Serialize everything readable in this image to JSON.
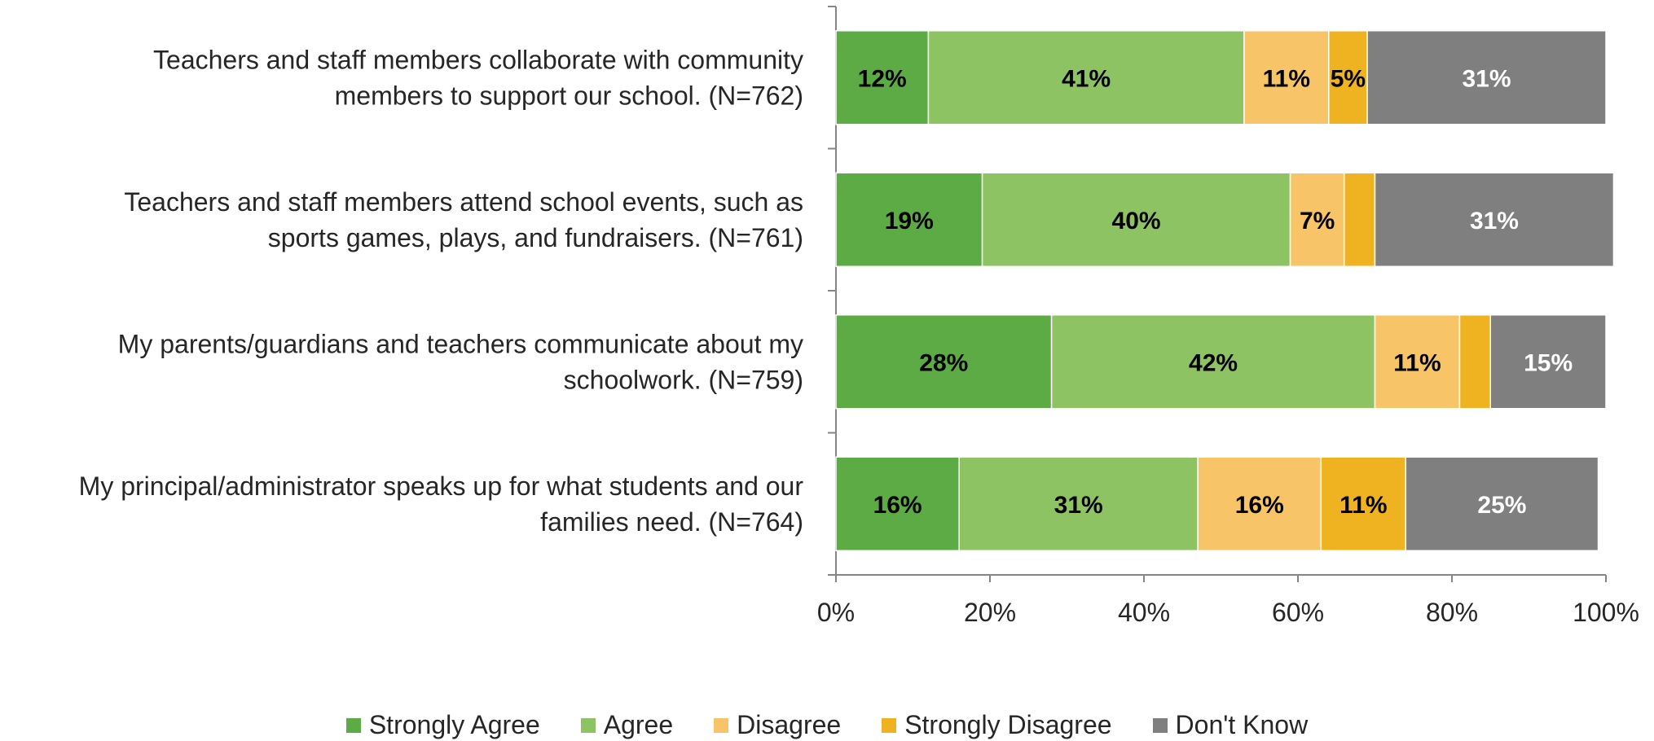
{
  "chart_data": {
    "type": "bar",
    "orientation": "horizontal",
    "stacked": true,
    "categories": [
      [
        "Teachers and staff members collaborate with community",
        "members to support our school. (N=762)"
      ],
      [
        "Teachers and staff members attend school events, such as",
        "sports games, plays, and fundraisers. (N=761)"
      ],
      [
        "My parents/guardians and teachers communicate about my",
        "schoolwork. (N=759)"
      ],
      [
        "My principal/administrator speaks up for what students and our",
        "families need. (N=764)"
      ]
    ],
    "series": [
      {
        "name": "Strongly Agree",
        "color": "#5DAB45",
        "values": [
          12,
          19,
          28,
          16
        ],
        "labels": [
          "12%",
          "19%",
          "28%",
          "16%"
        ],
        "label_color": "#000000"
      },
      {
        "name": "Agree",
        "color": "#8DC363",
        "values": [
          41,
          40,
          42,
          31
        ],
        "labels": [
          "41%",
          "40%",
          "42%",
          "31%"
        ],
        "label_color": "#000000"
      },
      {
        "name": "Disagree",
        "color": "#F7C568",
        "values": [
          11,
          7,
          11,
          16
        ],
        "labels": [
          "11%",
          "7%",
          "11%",
          "16%"
        ],
        "label_color": "#000000"
      },
      {
        "name": "Strongly Disagree",
        "color": "#EFB321",
        "values": [
          5,
          4,
          4,
          11
        ],
        "labels": [
          "5%",
          "",
          "",
          "11%"
        ],
        "label_color": "#000000"
      },
      {
        "name": "Don't Know",
        "color": "#7F7F7F",
        "values": [
          31,
          31,
          15,
          25
        ],
        "labels": [
          "31%",
          "31%",
          "15%",
          "25%"
        ],
        "label_color": "#ffffff"
      }
    ],
    "xlim": [
      0,
      100
    ],
    "x_ticks": [
      "0%",
      "20%",
      "40%",
      "60%",
      "80%",
      "100%"
    ],
    "grid": false,
    "legend_position": "bottom",
    "title": "",
    "xlabel": "",
    "ylabel": ""
  }
}
